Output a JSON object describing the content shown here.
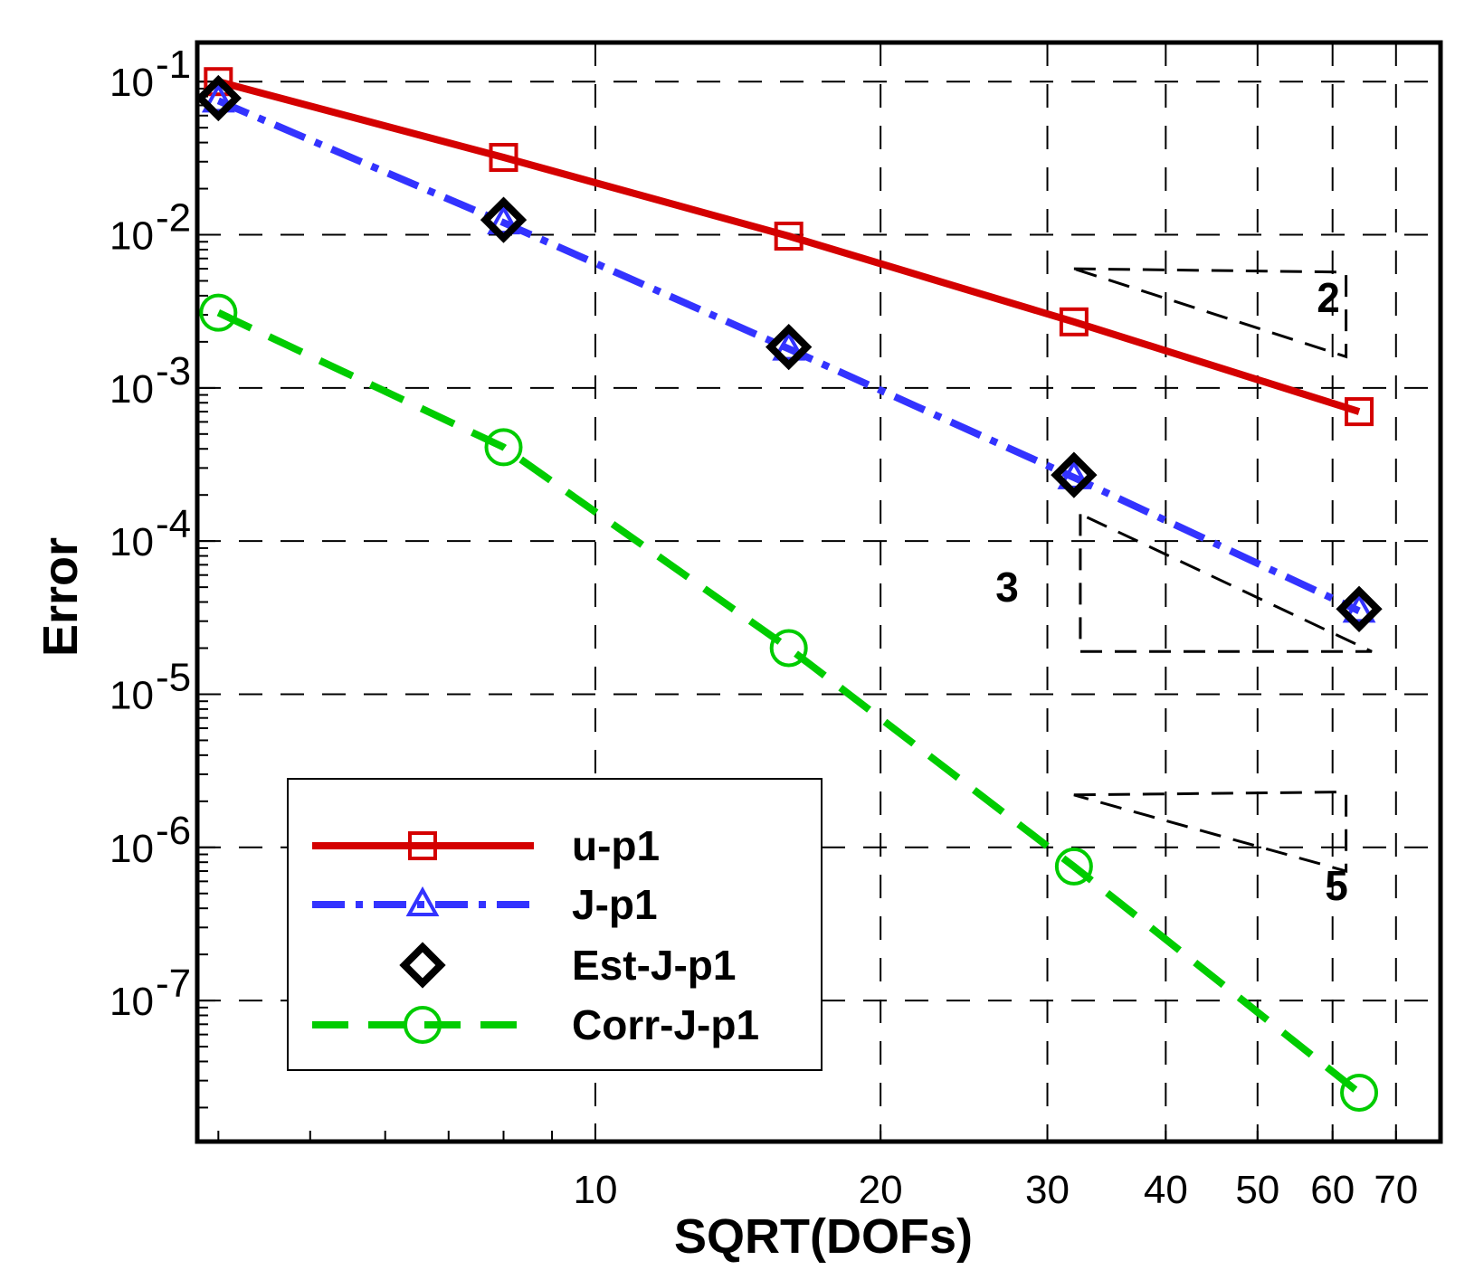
{
  "chart_data": {
    "type": "line",
    "xlabel": "SQRT(DOFs)",
    "ylabel": "Error",
    "x_scale": "log",
    "y_scale": "log",
    "xlim": [
      3.8,
      78
    ],
    "ylim": [
      1.2e-08,
      0.18
    ],
    "grid": true,
    "legend_position": "bottom-left",
    "x_ticks": [
      {
        "value": 10,
        "label": "10"
      },
      {
        "value": 20,
        "label": "20"
      },
      {
        "value": 30,
        "label": "30"
      },
      {
        "value": 40,
        "label": "40"
      },
      {
        "value": 50,
        "label": "50"
      },
      {
        "value": 60,
        "label": "60"
      },
      {
        "value": 70,
        "label": "70"
      }
    ],
    "y_ticks": [
      {
        "value": 0.1,
        "base": "10",
        "exp": "-1"
      },
      {
        "value": 0.01,
        "base": "10",
        "exp": "-2"
      },
      {
        "value": 0.001,
        "base": "10",
        "exp": "-3"
      },
      {
        "value": 0.0001,
        "base": "10",
        "exp": "-4"
      },
      {
        "value": 1e-05,
        "base": "10",
        "exp": "-5"
      },
      {
        "value": 1e-06,
        "base": "10",
        "exp": "-6"
      },
      {
        "value": 1e-07,
        "base": "10",
        "exp": "-7"
      }
    ],
    "series": [
      {
        "name": "u-p1",
        "color": "#d40000",
        "line": "solid",
        "marker": "square",
        "x": [
          4,
          8,
          16,
          32,
          64
        ],
        "y": [
          0.1,
          0.032,
          0.0098,
          0.0027,
          0.0007
        ]
      },
      {
        "name": "J-p1",
        "color": "#3333ff",
        "line": "dashdot",
        "marker": "triangle",
        "x": [
          4,
          8,
          16,
          32,
          64
        ],
        "y": [
          0.075,
          0.012,
          0.0018,
          0.00026,
          3.5e-05
        ]
      },
      {
        "name": "Est-J-p1",
        "color": "#000000",
        "line": "none",
        "marker": "diamond",
        "x": [
          4,
          8,
          16,
          32,
          64
        ],
        "y": [
          0.078,
          0.0125,
          0.00185,
          0.00027,
          3.6e-05
        ]
      },
      {
        "name": "Corr-J-p1",
        "color": "#00cc00",
        "line": "dashed",
        "marker": "circle",
        "x": [
          4,
          8,
          16,
          32,
          64
        ],
        "y": [
          0.0031,
          0.00041,
          2e-05,
          7.5e-07,
          2.5e-08
        ]
      }
    ],
    "slope_triangles": [
      {
        "label": "2",
        "points": [
          [
            32,
            0.006
          ],
          [
            62,
            0.0057
          ],
          [
            62,
            0.0016
          ]
        ]
      },
      {
        "label": "3",
        "points": [
          [
            32.5,
            0.00015
          ],
          [
            32.5,
            1.9e-05
          ],
          [
            66,
            1.9e-05
          ]
        ]
      },
      {
        "label": "5",
        "points": [
          [
            32,
            2.2e-06
          ],
          [
            62,
            2.3e-06
          ],
          [
            62,
            7e-07
          ]
        ]
      }
    ]
  }
}
